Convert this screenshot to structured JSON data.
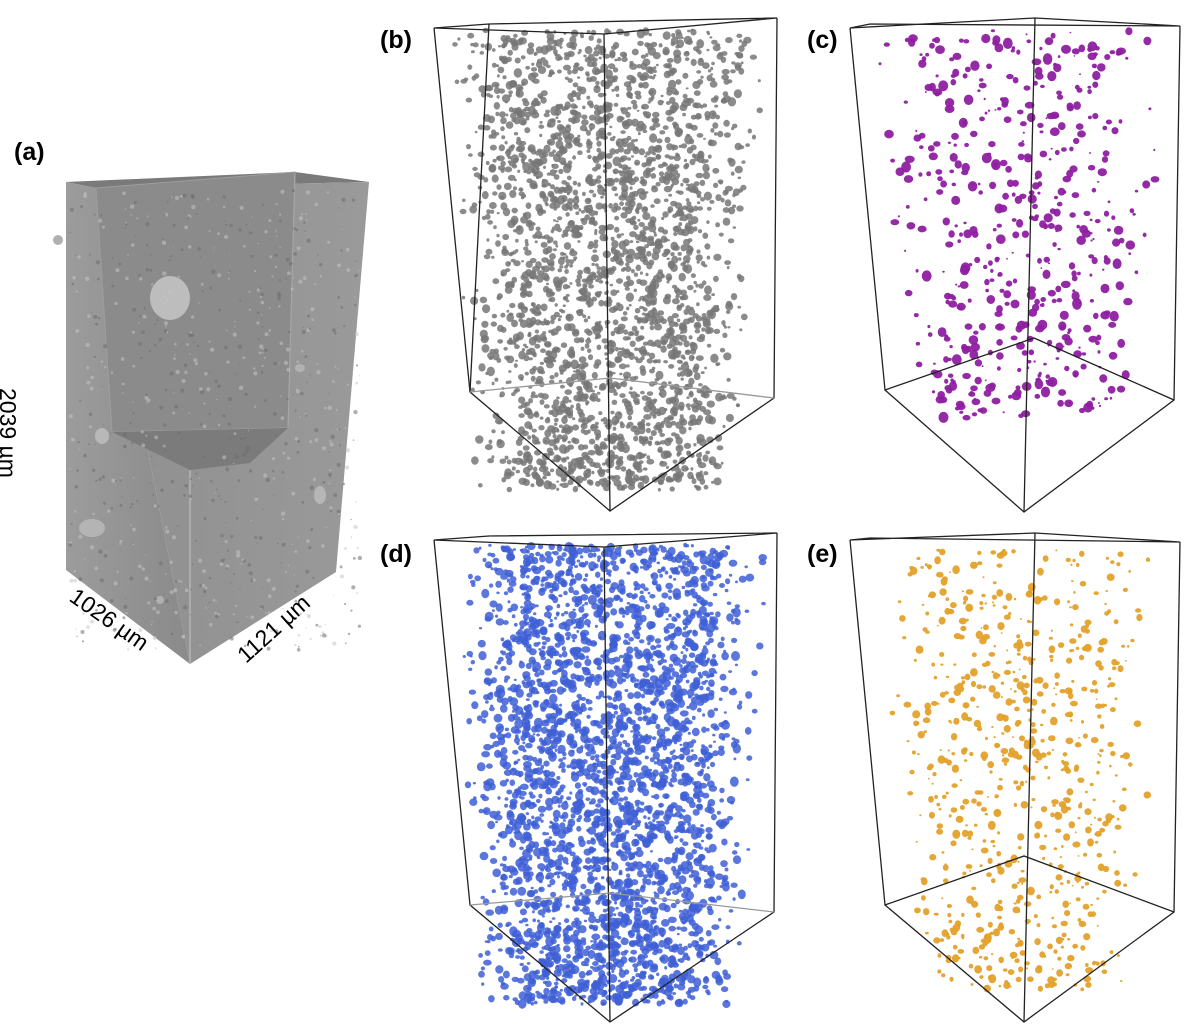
{
  "figure": {
    "panels": [
      {
        "id": "a",
        "label": "(a)",
        "content": "grayscale tomography volume with cut-out corner",
        "color": "#8c8c8c"
      },
      {
        "id": "b",
        "label": "(b)",
        "content": "segmented phase rendering",
        "color": "#777777"
      },
      {
        "id": "c",
        "label": "(c)",
        "content": "segmented phase rendering",
        "color": "#8e1fa0"
      },
      {
        "id": "d",
        "label": "(d)",
        "content": "segmented phase rendering",
        "color": "#3e5fd6"
      },
      {
        "id": "e",
        "label": "(e)",
        "content": "segmented phase rendering",
        "color": "#e3a12a"
      }
    ],
    "dimensions": {
      "height": "2039 µm",
      "depth": "1026 µm",
      "width": "1121 µm"
    }
  }
}
